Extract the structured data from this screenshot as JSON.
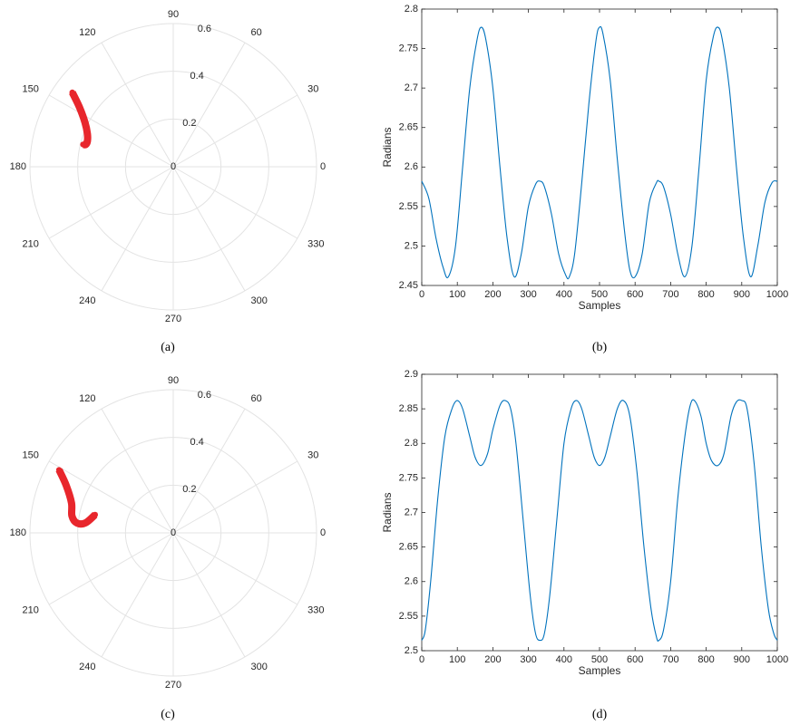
{
  "chart_data": [
    {
      "panel": "a",
      "type": "scatter",
      "coordinate_system": "polar",
      "caption": "(a)",
      "angle_ticks": [
        "0",
        "30",
        "60",
        "90",
        "120",
        "150",
        "180",
        "210",
        "240",
        "270",
        "300",
        "330"
      ],
      "radial_ticks": [
        "0",
        "0.2",
        "0.4",
        "0.6"
      ],
      "rlim": [
        0,
        0.6
      ],
      "grid": true,
      "color": "#e8262c",
      "series": [
        {
          "theta_deg": [
            143.6,
            147.5,
            153.4,
            159.0,
            163.4,
            165.8,
            166.1
          ],
          "r": [
            0.525,
            0.466,
            0.413,
            0.385,
            0.375,
            0.378,
            0.389
          ]
        }
      ]
    },
    {
      "panel": "b",
      "type": "line",
      "caption": "(b)",
      "xlabel": "Samples",
      "ylabel": "Radians",
      "xlim": [
        0,
        1000
      ],
      "ylim": [
        2.45,
        2.8
      ],
      "xticks": [
        "0",
        "100",
        "200",
        "300",
        "400",
        "500",
        "600",
        "700",
        "800",
        "900",
        "1000"
      ],
      "yticks": [
        "2.45",
        "2.5",
        "2.55",
        "2.6",
        "2.65",
        "2.7",
        "2.75",
        "2.8"
      ],
      "color": "#0072bd",
      "series": [
        {
          "x": [
            0,
            20,
            40,
            60,
            75,
            95,
            115,
            135,
            155,
            167,
            180,
            200,
            220,
            240,
            260,
            280,
            300,
            320,
            333,
            345,
            365,
            385,
            405,
            415,
            430,
            450,
            470,
            490,
            500,
            510,
            530,
            550,
            570,
            585,
            600,
            620,
            640,
            660,
            667,
            680,
            700,
            720,
            740,
            760,
            780,
            800,
            820,
            833,
            845,
            865,
            885,
            905,
            925,
            945,
            965,
            985,
            1000
          ],
          "y": [
            2.582,
            2.56,
            2.51,
            2.473,
            2.461,
            2.5,
            2.6,
            2.7,
            2.76,
            2.777,
            2.762,
            2.7,
            2.6,
            2.51,
            2.461,
            2.49,
            2.55,
            2.578,
            2.582,
            2.575,
            2.54,
            2.49,
            2.463,
            2.461,
            2.49,
            2.58,
            2.68,
            2.76,
            2.777,
            2.768,
            2.71,
            2.61,
            2.52,
            2.47,
            2.461,
            2.49,
            2.555,
            2.58,
            2.582,
            2.575,
            2.54,
            2.49,
            2.461,
            2.5,
            2.6,
            2.71,
            2.765,
            2.777,
            2.762,
            2.7,
            2.6,
            2.51,
            2.461,
            2.5,
            2.555,
            2.58,
            2.582
          ]
        }
      ]
    },
    {
      "panel": "c",
      "type": "scatter",
      "coordinate_system": "polar",
      "caption": "(c)",
      "angle_ticks": [
        "0",
        "30",
        "60",
        "90",
        "120",
        "150",
        "180",
        "210",
        "240",
        "270",
        "300",
        "330"
      ],
      "radial_ticks": [
        "0",
        "0.2",
        "0.4",
        "0.6"
      ],
      "rlim": [
        0,
        0.6
      ],
      "grid": true,
      "color": "#e8262c",
      "series": [
        {
          "theta_deg": [
            151.1,
            156.1,
            163.6,
            170.5,
            174.2,
            173.4,
            166.9
          ],
          "r": [
            0.546,
            0.49,
            0.444,
            0.43,
            0.405,
            0.369,
            0.336
          ]
        }
      ]
    },
    {
      "panel": "d",
      "type": "line",
      "caption": "(d)",
      "xlabel": "Samples",
      "ylabel": "Radians",
      "xlim": [
        0,
        1000
      ],
      "ylim": [
        2.5,
        2.9
      ],
      "xticks": [
        "0",
        "100",
        "200",
        "300",
        "400",
        "500",
        "600",
        "700",
        "800",
        "900",
        "1000"
      ],
      "yticks": [
        "2.5",
        "2.55",
        "2.6",
        "2.65",
        "2.7",
        "2.75",
        "2.8",
        "2.85",
        "2.9"
      ],
      "color": "#0072bd",
      "series": [
        {
          "x": [
            0,
            10,
            25,
            45,
            65,
            85,
            100,
            115,
            135,
            150,
            167,
            185,
            200,
            220,
            235,
            250,
            265,
            285,
            305,
            320,
            333,
            345,
            360,
            380,
            400,
            420,
            435,
            450,
            470,
            485,
            500,
            515,
            530,
            550,
            567,
            585,
            605,
            625,
            645,
            660,
            667,
            680,
            700,
            720,
            740,
            755,
            767,
            785,
            800,
            815,
            833,
            850,
            870,
            885,
            900,
            915,
            935,
            955,
            975,
            990,
            1000
          ],
          "y": [
            2.515,
            2.53,
            2.6,
            2.72,
            2.81,
            2.85,
            2.862,
            2.85,
            2.81,
            2.78,
            2.768,
            2.785,
            2.82,
            2.855,
            2.862,
            2.85,
            2.8,
            2.69,
            2.58,
            2.525,
            2.515,
            2.525,
            2.58,
            2.69,
            2.8,
            2.85,
            2.862,
            2.85,
            2.81,
            2.78,
            2.768,
            2.78,
            2.81,
            2.85,
            2.862,
            2.84,
            2.76,
            2.65,
            2.56,
            2.52,
            2.515,
            2.53,
            2.6,
            2.72,
            2.81,
            2.855,
            2.862,
            2.84,
            2.8,
            2.775,
            2.768,
            2.785,
            2.84,
            2.86,
            2.862,
            2.85,
            2.77,
            2.65,
            2.56,
            2.525,
            2.515
          ]
        }
      ]
    }
  ]
}
